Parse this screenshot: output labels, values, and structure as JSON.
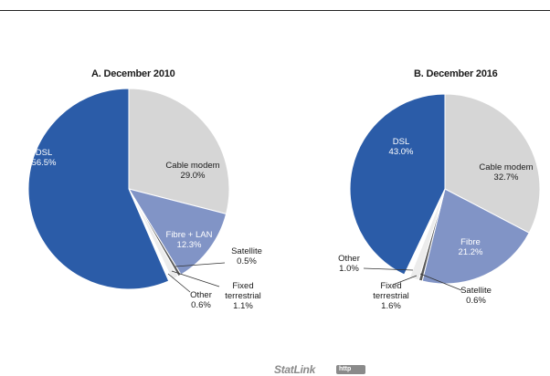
{
  "chart_data": [
    {
      "type": "pie",
      "title": "A. December 2010",
      "slices": [
        {
          "name": "Cable modem",
          "value": 29.0,
          "label": "29.0%",
          "color": "#d6d6d6"
        },
        {
          "name": "Fibre + LAN",
          "value": 12.3,
          "label": "12.3%",
          "color": "#8194c6"
        },
        {
          "name": "Satellite",
          "value": 0.5,
          "label": "0.5%",
          "color": "#5a5a5a"
        },
        {
          "name": "Fixed terrestrial",
          "value": 1.1,
          "label": "1.1%",
          "color": "#ececec"
        },
        {
          "name": "Other",
          "value": 0.6,
          "label": "0.6%",
          "color": "#ffffff"
        },
        {
          "name": "DSL",
          "value": 56.5,
          "label": "56.5%",
          "color": "#2b5ca8"
        }
      ]
    },
    {
      "type": "pie",
      "title": "B. December 2016",
      "slices": [
        {
          "name": "Cable modem",
          "value": 32.7,
          "label": "32.7%",
          "color": "#d6d6d6"
        },
        {
          "name": "Fibre",
          "value": 21.2,
          "label": "21.2%",
          "color": "#8194c6"
        },
        {
          "name": "Satellite",
          "value": 0.6,
          "label": "0.6%",
          "color": "#5a5a5a"
        },
        {
          "name": "Fixed terrestrial",
          "value": 1.6,
          "label": "1.6%",
          "color": "#ececec"
        },
        {
          "name": "Other",
          "value": 1.0,
          "label": "1.0%",
          "color": "#ffffff"
        },
        {
          "name": "DSL",
          "value": 43.0,
          "label": "43.0%",
          "color": "#2b5ca8"
        }
      ]
    }
  ],
  "footer": {
    "statlink": "StatLink",
    "statlink_icon": "http"
  }
}
